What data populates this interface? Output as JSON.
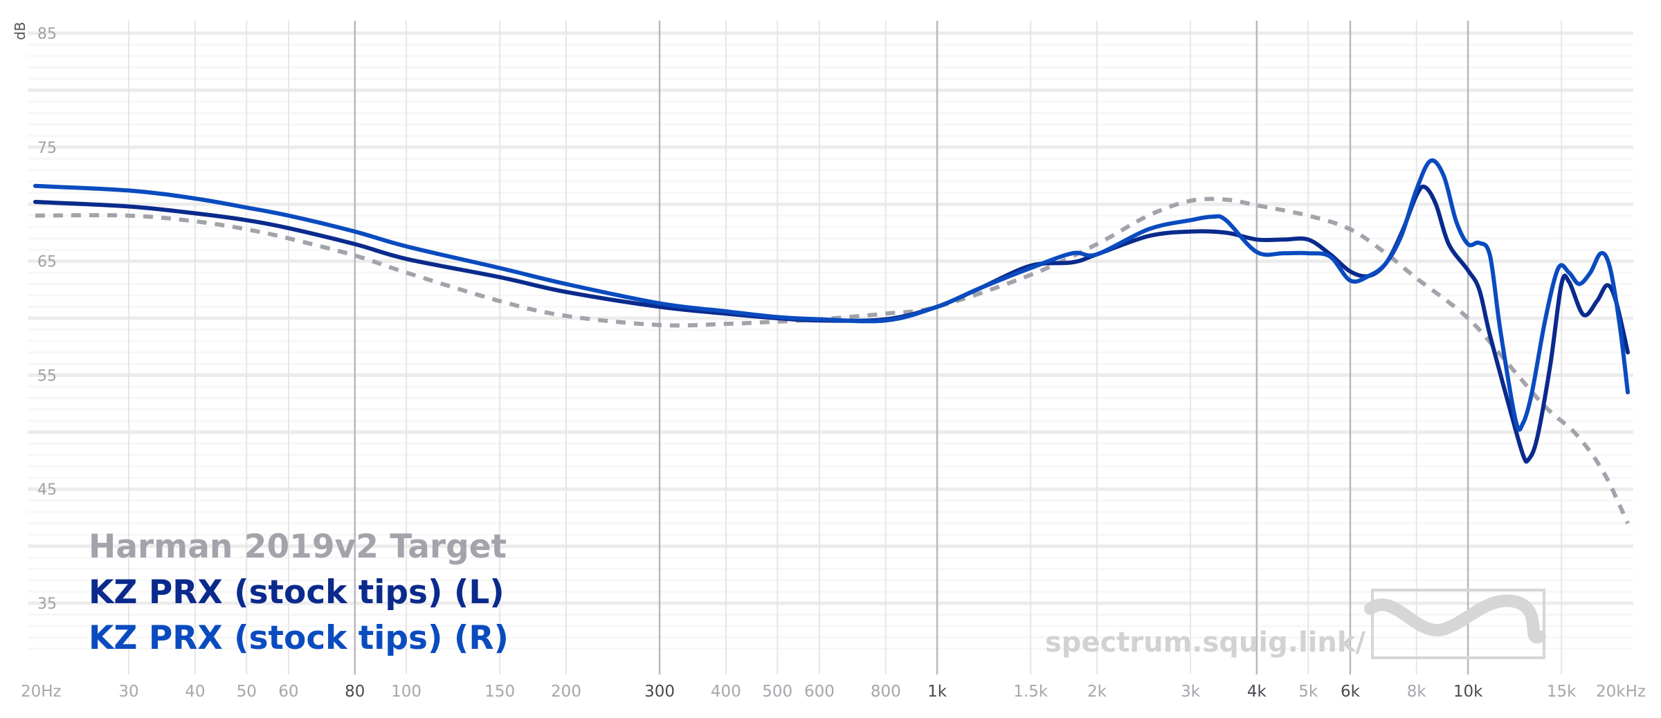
{
  "chart_data": {
    "type": "line",
    "xlabel": "",
    "ylabel": "dB",
    "x_scale": "log",
    "xlim": [
      20,
      20000
    ],
    "ylim": [
      30,
      85
    ],
    "grid": true,
    "legend_position": "bottom-left",
    "y_ticks": [
      "85",
      "75",
      "65",
      "55",
      "45",
      "35"
    ],
    "y_tick_values": [
      85,
      75,
      65,
      55,
      45,
      35
    ],
    "x_ticks": [
      {
        "value": 20,
        "label": "20Hz",
        "major": false
      },
      {
        "value": 30,
        "label": "30",
        "major": false
      },
      {
        "value": 40,
        "label": "40",
        "major": false
      },
      {
        "value": 50,
        "label": "50",
        "major": false
      },
      {
        "value": 60,
        "label": "60",
        "major": false
      },
      {
        "value": 80,
        "label": "80",
        "major": true
      },
      {
        "value": 100,
        "label": "100",
        "major": false
      },
      {
        "value": 150,
        "label": "150",
        "major": false
      },
      {
        "value": 200,
        "label": "200",
        "major": false
      },
      {
        "value": 300,
        "label": "300",
        "major": true
      },
      {
        "value": 400,
        "label": "400",
        "major": false
      },
      {
        "value": 500,
        "label": "500",
        "major": false
      },
      {
        "value": 600,
        "label": "600",
        "major": false
      },
      {
        "value": 800,
        "label": "800",
        "major": false
      },
      {
        "value": 1000,
        "label": "1k",
        "major": true
      },
      {
        "value": 1500,
        "label": "1.5k",
        "major": false
      },
      {
        "value": 2000,
        "label": "2k",
        "major": false
      },
      {
        "value": 3000,
        "label": "3k",
        "major": false
      },
      {
        "value": 4000,
        "label": "4k",
        "major": true
      },
      {
        "value": 5000,
        "label": "5k",
        "major": false
      },
      {
        "value": 6000,
        "label": "6k",
        "major": true
      },
      {
        "value": 8000,
        "label": "8k",
        "major": false
      },
      {
        "value": 10000,
        "label": "10k",
        "major": true
      },
      {
        "value": 15000,
        "label": "15k",
        "major": false
      },
      {
        "value": 20000,
        "label": "20kHz",
        "major": false
      }
    ],
    "series": [
      {
        "name": "Harman 2019v2 Target",
        "color": "#a3a3ab",
        "dashed": true,
        "points": [
          [
            20,
            69.0
          ],
          [
            30,
            69.0
          ],
          [
            40,
            68.5
          ],
          [
            50,
            67.8
          ],
          [
            60,
            67.0
          ],
          [
            80,
            65.5
          ],
          [
            100,
            64.0
          ],
          [
            150,
            61.5
          ],
          [
            200,
            60.2
          ],
          [
            300,
            59.4
          ],
          [
            400,
            59.5
          ],
          [
            500,
            59.7
          ],
          [
            600,
            59.9
          ],
          [
            800,
            60.4
          ],
          [
            1000,
            61.0
          ],
          [
            1500,
            63.8
          ],
          [
            2000,
            66.5
          ],
          [
            2500,
            69.0
          ],
          [
            3000,
            70.3
          ],
          [
            3500,
            70.4
          ],
          [
            4000,
            69.9
          ],
          [
            5000,
            69.0
          ],
          [
            6000,
            67.8
          ],
          [
            7000,
            65.7
          ],
          [
            8000,
            63.5
          ],
          [
            10000,
            60.0
          ],
          [
            12000,
            55.8
          ],
          [
            14000,
            52.2
          ],
          [
            16000,
            49.8
          ],
          [
            18000,
            46.5
          ],
          [
            20000,
            42.0
          ]
        ]
      },
      {
        "name": "KZ PRX (stock tips) (L)",
        "color": "#0a2a8c",
        "dashed": false,
        "points": [
          [
            20,
            70.2
          ],
          [
            30,
            69.8
          ],
          [
            40,
            69.2
          ],
          [
            50,
            68.6
          ],
          [
            60,
            67.9
          ],
          [
            80,
            66.5
          ],
          [
            100,
            65.2
          ],
          [
            150,
            63.6
          ],
          [
            200,
            62.3
          ],
          [
            300,
            61.0
          ],
          [
            400,
            60.4
          ],
          [
            500,
            60.0
          ],
          [
            600,
            59.8
          ],
          [
            800,
            59.9
          ],
          [
            1000,
            61.0
          ],
          [
            1200,
            62.6
          ],
          [
            1500,
            64.6
          ],
          [
            1800,
            64.9
          ],
          [
            2000,
            65.6
          ],
          [
            2500,
            67.2
          ],
          [
            3000,
            67.6
          ],
          [
            3500,
            67.5
          ],
          [
            4000,
            66.9
          ],
          [
            4500,
            66.9
          ],
          [
            5000,
            66.9
          ],
          [
            5500,
            65.6
          ],
          [
            6000,
            64.1
          ],
          [
            6500,
            63.7
          ],
          [
            7000,
            64.8
          ],
          [
            7500,
            67.5
          ],
          [
            8000,
            70.8
          ],
          [
            8300,
            71.5
          ],
          [
            8700,
            70.0
          ],
          [
            9200,
            66.5
          ],
          [
            10000,
            64.2
          ],
          [
            10500,
            62.5
          ],
          [
            11000,
            58.5
          ],
          [
            12000,
            52.0
          ],
          [
            12700,
            48.0
          ],
          [
            13000,
            47.6
          ],
          [
            13500,
            49.5
          ],
          [
            14300,
            56.0
          ],
          [
            15000,
            63.0
          ],
          [
            15500,
            63.2
          ],
          [
            16500,
            60.3
          ],
          [
            17500,
            61.5
          ],
          [
            18300,
            62.9
          ],
          [
            19000,
            61.5
          ],
          [
            20000,
            57.0
          ]
        ]
      },
      {
        "name": "KZ PRX (stock tips) (R)",
        "color": "#0a4bbf",
        "dashed": false,
        "points": [
          [
            20,
            71.6
          ],
          [
            30,
            71.2
          ],
          [
            40,
            70.5
          ],
          [
            50,
            69.7
          ],
          [
            60,
            69.0
          ],
          [
            80,
            67.6
          ],
          [
            100,
            66.3
          ],
          [
            150,
            64.4
          ],
          [
            200,
            63.0
          ],
          [
            300,
            61.3
          ],
          [
            400,
            60.6
          ],
          [
            500,
            60.1
          ],
          [
            600,
            59.9
          ],
          [
            800,
            59.8
          ],
          [
            1000,
            61.0
          ],
          [
            1200,
            62.6
          ],
          [
            1500,
            64.4
          ],
          [
            1800,
            65.7
          ],
          [
            2000,
            65.6
          ],
          [
            2500,
            67.8
          ],
          [
            3000,
            68.6
          ],
          [
            3300,
            68.9
          ],
          [
            3500,
            68.6
          ],
          [
            4000,
            65.8
          ],
          [
            4500,
            65.7
          ],
          [
            5000,
            65.7
          ],
          [
            5500,
            65.4
          ],
          [
            6000,
            63.3
          ],
          [
            6500,
            63.7
          ],
          [
            7000,
            64.8
          ],
          [
            7500,
            67.3
          ],
          [
            8000,
            71.3
          ],
          [
            8500,
            73.8
          ],
          [
            9000,
            72.5
          ],
          [
            9500,
            68.5
          ],
          [
            10000,
            66.5
          ],
          [
            10500,
            66.6
          ],
          [
            11000,
            65.5
          ],
          [
            11500,
            59.0
          ],
          [
            12300,
            51.0
          ],
          [
            12700,
            50.8
          ],
          [
            13200,
            53.5
          ],
          [
            14000,
            60.0
          ],
          [
            14800,
            64.4
          ],
          [
            15500,
            64.0
          ],
          [
            16200,
            63.0
          ],
          [
            17000,
            64.0
          ],
          [
            17800,
            65.7
          ],
          [
            18500,
            64.5
          ],
          [
            19300,
            59.5
          ],
          [
            20000,
            53.5
          ]
        ]
      }
    ]
  },
  "watermark": {
    "text": "spectrum.squig.link/"
  }
}
